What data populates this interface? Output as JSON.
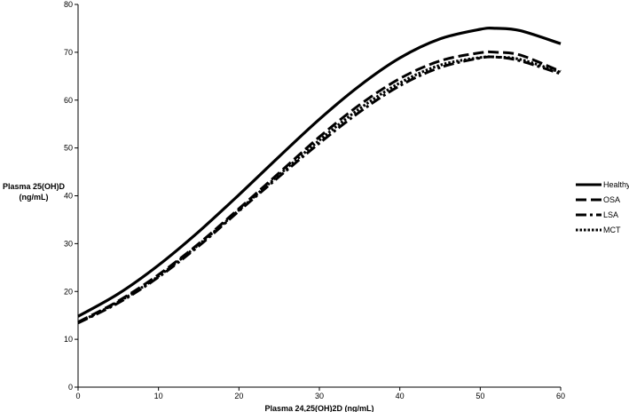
{
  "chart_data": {
    "type": "line",
    "title": "",
    "xlabel": "Plasma 24,25(OH)2D  (ng/mL)",
    "ylabel_line1": "Plasma 25(OH)D",
    "ylabel_line2": "(ng/mL)",
    "xlim": [
      0,
      60
    ],
    "ylim": [
      0,
      80
    ],
    "x_ticks": [
      "0",
      "10",
      "20",
      "30",
      "40",
      "50",
      "60"
    ],
    "y_ticks": [
      "0",
      "10",
      "20",
      "30",
      "40",
      "50",
      "60",
      "70",
      "80"
    ],
    "grid": false,
    "legend_position": "right",
    "series": [
      {
        "name": "Healthy",
        "style": "solid",
        "color": "#000000",
        "x": [
          0,
          5,
          10,
          15,
          20,
          25,
          30,
          35,
          40,
          45,
          50,
          52,
          55,
          60
        ],
        "y": [
          14.8,
          19.5,
          25.5,
          32.5,
          40.2,
          48.2,
          56.0,
          63.0,
          68.8,
          72.8,
          74.8,
          75.0,
          74.5,
          71.8
        ]
      },
      {
        "name": "OSA",
        "style": "dashed",
        "color": "#000000",
        "x": [
          0,
          5,
          10,
          15,
          20,
          25,
          30,
          35,
          40,
          45,
          50,
          52,
          55,
          60
        ],
        "y": [
          13.6,
          18.0,
          23.5,
          30.0,
          37.3,
          44.8,
          52.3,
          59.0,
          64.5,
          68.2,
          69.9,
          70.0,
          69.4,
          66.0
        ]
      },
      {
        "name": "LSA",
        "style": "dashdot",
        "color": "#000000",
        "x": [
          0,
          5,
          10,
          15,
          20,
          25,
          30,
          35,
          40,
          45,
          50,
          52,
          55,
          60
        ],
        "y": [
          13.4,
          17.6,
          23.0,
          29.5,
          36.8,
          44.0,
          51.0,
          57.5,
          63.0,
          66.8,
          68.8,
          69.0,
          68.2,
          65.5
        ]
      },
      {
        "name": "MCT",
        "style": "dotted",
        "color": "#000000",
        "x": [
          0,
          5,
          10,
          15,
          20,
          25,
          30,
          35,
          40,
          45,
          50,
          52,
          55,
          60
        ],
        "y": [
          13.5,
          17.8,
          23.2,
          29.8,
          37.0,
          44.4,
          51.6,
          58.2,
          63.6,
          67.3,
          68.9,
          69.0,
          68.5,
          65.8
        ]
      }
    ]
  }
}
